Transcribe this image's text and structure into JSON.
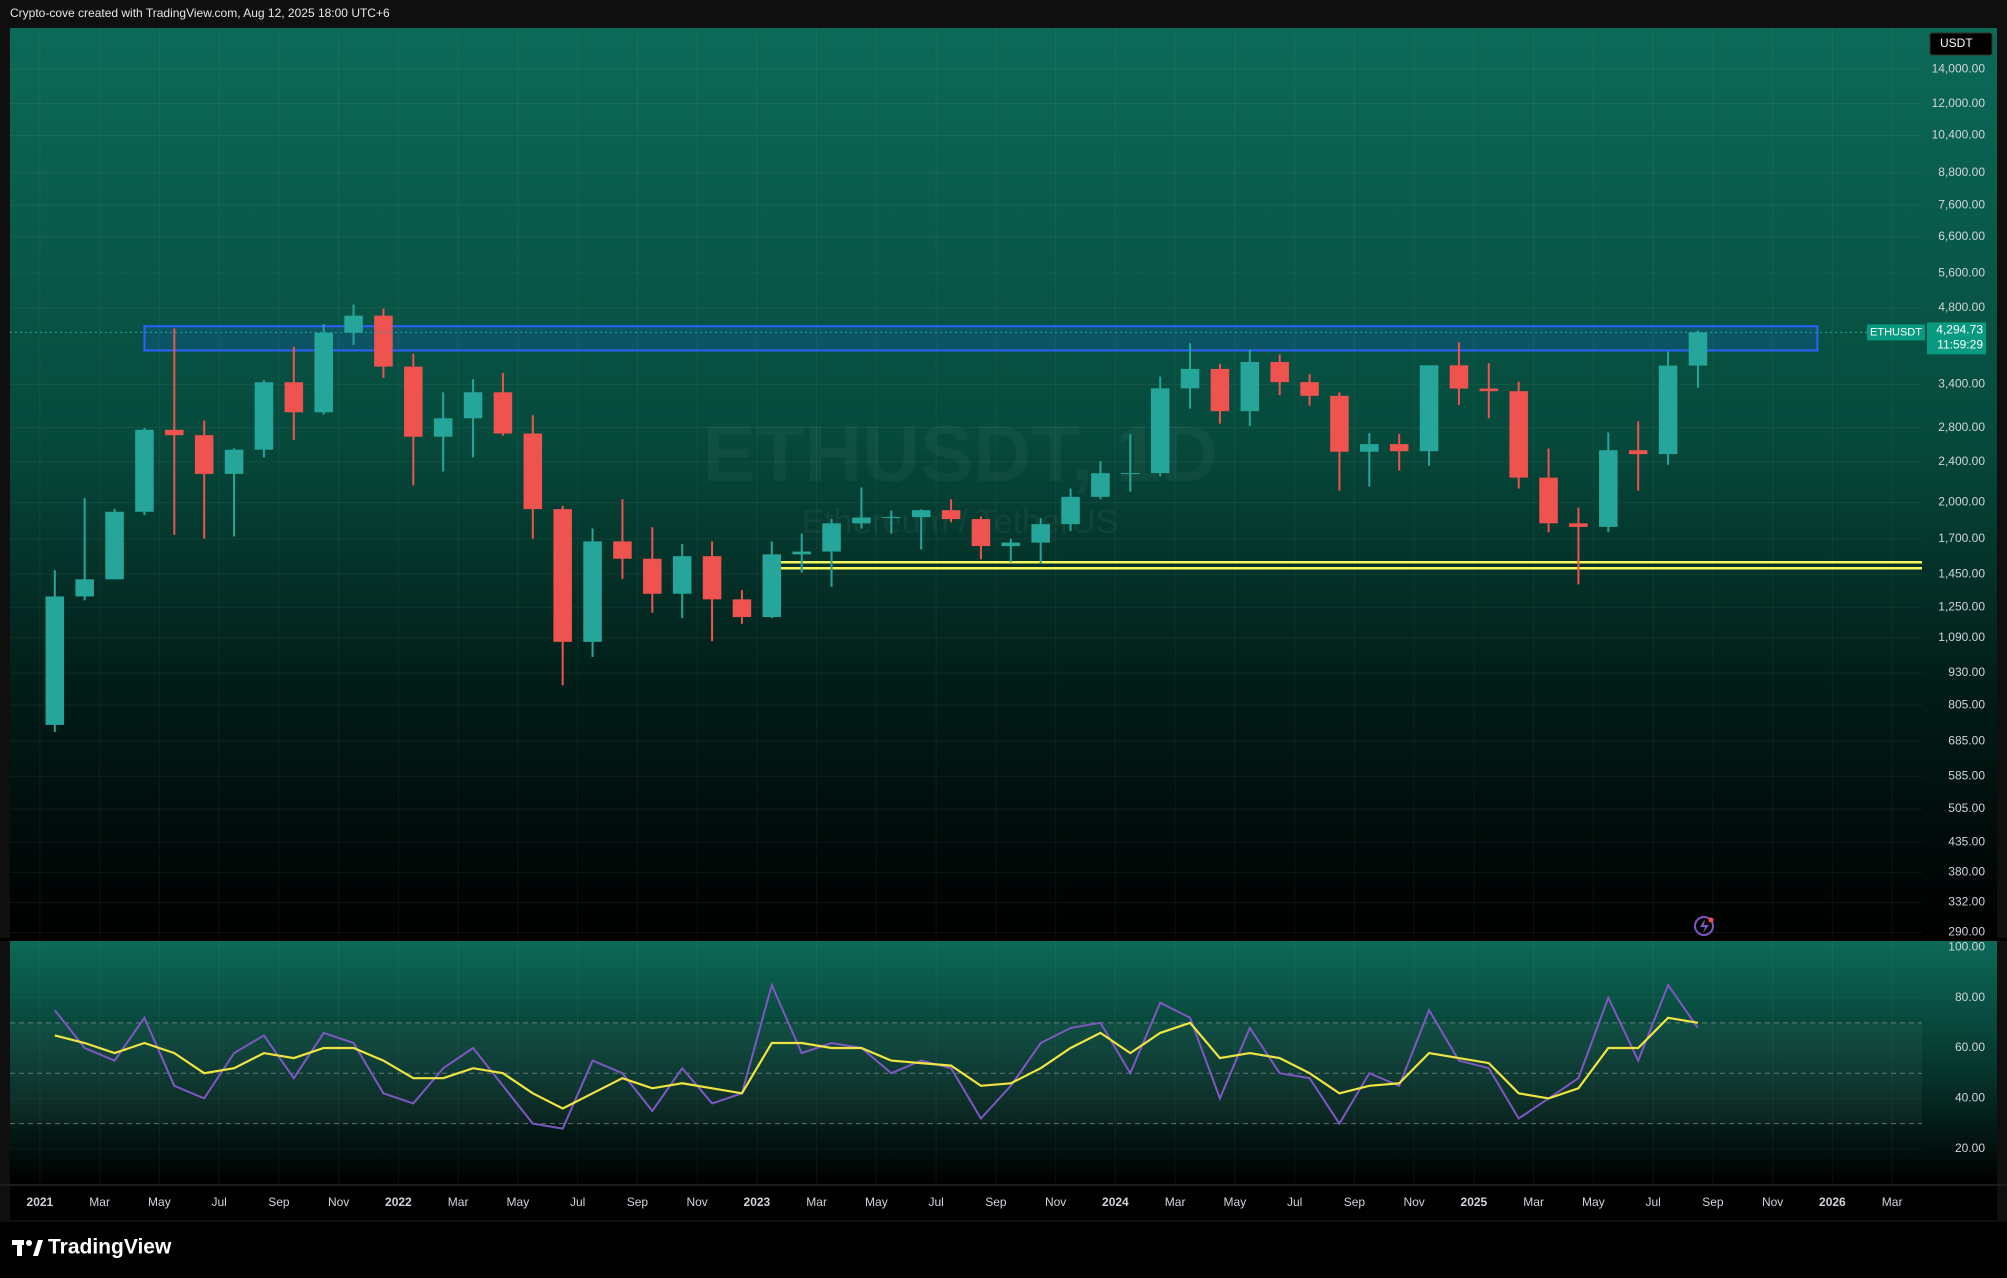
{
  "header": {
    "title": "Crypto-cove created with TradingView.com, Aug 12, 2025 18:00 UTC+6"
  },
  "footer": {
    "brand": "TradingView"
  },
  "chart_data": [
    {
      "type": "candlestick",
      "watermark": "ETHUSDT, 1D",
      "watermark_sub": "Ethereum / TetherUS",
      "currency": "USDT",
      "symbol": "ETHUSDT",
      "last_price": {
        "value": 4294.73,
        "label": "4,294.73"
      },
      "countdown": "11:59:29",
      "up_color": "#26a69a",
      "down_color": "#ef5350",
      "log_scale": true,
      "grid": true,
      "xlim": [
        "2020-12",
        "2026-04"
      ],
      "ylim": [
        283,
        16850
      ],
      "yticks": [
        {
          "value": 14000,
          "label": "14,000.00"
        },
        {
          "value": 12000,
          "label": "12,000.00"
        },
        {
          "value": 10400,
          "label": "10,400.00"
        },
        {
          "value": 8800,
          "label": "8,800.00"
        },
        {
          "value": 7600,
          "label": "7,600.00"
        },
        {
          "value": 6600,
          "label": "6,600.00"
        },
        {
          "value": 5600,
          "label": "5,600.00"
        },
        {
          "value": 4800,
          "label": "4,800.00"
        },
        {
          "value": 3400,
          "label": "3,400.00"
        },
        {
          "value": 2800,
          "label": "2,800.00"
        },
        {
          "value": 2400,
          "label": "2,400.00"
        },
        {
          "value": 2000,
          "label": "2,000.00"
        },
        {
          "value": 1700,
          "label": "1,700.00"
        },
        {
          "value": 1450,
          "label": "1,450.00"
        },
        {
          "value": 1250,
          "label": "1,250.00"
        },
        {
          "value": 1090,
          "label": "1,090.00"
        },
        {
          "value": 930,
          "label": "930.00"
        },
        {
          "value": 805,
          "label": "805.00"
        },
        {
          "value": 685,
          "label": "685.00"
        },
        {
          "value": 585,
          "label": "585.00"
        },
        {
          "value": 505,
          "label": "505.00"
        },
        {
          "value": 435,
          "label": "435.00"
        },
        {
          "value": 380,
          "label": "380.00"
        },
        {
          "value": 332,
          "label": "332.00"
        },
        {
          "value": 290,
          "label": "290.00"
        }
      ],
      "x": [
        "2021-01",
        "2021-02",
        "2021-03",
        "2021-04",
        "2021-05",
        "2021-06",
        "2021-07",
        "2021-08",
        "2021-09",
        "2021-10",
        "2021-11",
        "2021-12",
        "2022-01",
        "2022-02",
        "2022-03",
        "2022-04",
        "2022-05",
        "2022-06",
        "2022-07",
        "2022-08",
        "2022-09",
        "2022-10",
        "2022-11",
        "2022-12",
        "2023-01",
        "2023-02",
        "2023-03",
        "2023-04",
        "2023-05",
        "2023-06",
        "2023-07",
        "2023-08",
        "2023-09",
        "2023-10",
        "2023-11",
        "2023-12",
        "2024-01",
        "2024-02",
        "2024-03",
        "2024-04",
        "2024-05",
        "2024-06",
        "2024-07",
        "2024-08",
        "2024-09",
        "2024-10",
        "2024-11",
        "2024-12",
        "2025-01",
        "2025-02",
        "2025-03",
        "2025-04",
        "2025-05",
        "2025-06",
        "2025-07",
        "2025-08"
      ],
      "open": [
        737,
        1312,
        1417,
        1919,
        2773,
        2707,
        2275,
        2536,
        3433,
        3000,
        4288,
        4630,
        3683,
        2688,
        2920,
        3282,
        2727,
        1942,
        1070,
        1680,
        1554,
        1328,
        1572,
        1295,
        1196,
        1585,
        1605,
        1822,
        1870,
        1874,
        1933,
        1857,
        1645,
        1671,
        1815,
        2052,
        2282,
        2283,
        3340,
        3645,
        3015,
        3760,
        3435,
        3230,
        2513,
        2600,
        2519,
        3705,
        3337,
        3298,
        2237,
        1822,
        1793,
        2530,
        2486,
        3700
      ],
      "high": [
        1476,
        2040,
        1944,
        2797,
        4372,
        2891,
        2551,
        3466,
        4027,
        4460,
        4868,
        4778,
        3900,
        3280,
        3480,
        3580,
        2960,
        1970,
        1780,
        2030,
        1790,
        1660,
        1680,
        1350,
        1680,
        1740,
        1860,
        2140,
        1930,
        1940,
        2030,
        1880,
        1700,
        1865,
        2130,
        2410,
        2720,
        3520,
        4090,
        3730,
        3975,
        3890,
        3560,
        3280,
        2730,
        2720,
        3690,
        4107,
        3740,
        3440,
        2550,
        1955,
        2740,
        2880,
        3940,
        4332
      ],
      "low": [
        714,
        1290,
        1417,
        1890,
        1730,
        1700,
        1718,
        2450,
        2650,
        2970,
        4060,
        3500,
        2160,
        2300,
        2450,
        2700,
        1700,
        880,
        1000,
        1420,
        1220,
        1190,
        1073,
        1160,
        1190,
        1460,
        1370,
        1780,
        1740,
        1620,
        1830,
        1550,
        1530,
        1520,
        1760,
        2030,
        2100,
        2250,
        3050,
        2850,
        2820,
        3240,
        3090,
        2110,
        2150,
        2310,
        2360,
        3100,
        2920,
        2130,
        1750,
        1385,
        1750,
        2110,
        2370,
        3350
      ],
      "close": [
        1312,
        1417,
        1919,
        2773,
        2707,
        2275,
        2536,
        3433,
        3000,
        4288,
        4630,
        3683,
        2688,
        2920,
        3282,
        2727,
        1942,
        1070,
        1680,
        1554,
        1328,
        1572,
        1295,
        1196,
        1585,
        1605,
        1822,
        1870,
        1874,
        1933,
        1857,
        1645,
        1671,
        1815,
        2052,
        2282,
        2283,
        3340,
        3645,
        3015,
        3760,
        3435,
        3230,
        2513,
        2600,
        2519,
        3705,
        3337,
        3298,
        2237,
        1822,
        1793,
        2530,
        2486,
        3700,
        4294.73
      ],
      "zones": [
        {
          "from": "2021-04",
          "to": "2025-12",
          "low": 3960,
          "high": 4415,
          "color": "#2962ff"
        }
      ],
      "lines": [
        {
          "from": "2023-01",
          "value": 1530,
          "color": "#f7f75a"
        },
        {
          "from": "2023-01",
          "value": 1489,
          "color": "#f7f75a"
        }
      ]
    },
    {
      "type": "line",
      "grid": true,
      "xlim": [
        "2020-12",
        "2026-04"
      ],
      "ylim": [
        6,
        102.5
      ],
      "yticks": [
        {
          "value": 100,
          "label": "100.00"
        },
        {
          "value": 80,
          "label": "80.00"
        },
        {
          "value": 60,
          "label": "60.00"
        },
        {
          "value": 40,
          "label": "40.00"
        },
        {
          "value": 20,
          "label": "20.00"
        }
      ],
      "levels": [
        70,
        50,
        30
      ],
      "xticks": [
        {
          "value": "2021-01",
          "label": "2021"
        },
        {
          "value": "2021-03",
          "label": "Mar"
        },
        {
          "value": "2021-05",
          "label": "May"
        },
        {
          "value": "2021-07",
          "label": "Jul"
        },
        {
          "value": "2021-09",
          "label": "Sep"
        },
        {
          "value": "2021-11",
          "label": "Nov"
        },
        {
          "value": "2022-01",
          "label": "2022"
        },
        {
          "value": "2022-03",
          "label": "Mar"
        },
        {
          "value": "2022-05",
          "label": "May"
        },
        {
          "value": "2022-07",
          "label": "Jul"
        },
        {
          "value": "2022-09",
          "label": "Sep"
        },
        {
          "value": "2022-11",
          "label": "Nov"
        },
        {
          "value": "2023-01",
          "label": "2023"
        },
        {
          "value": "2023-03",
          "label": "Mar"
        },
        {
          "value": "2023-05",
          "label": "May"
        },
        {
          "value": "2023-07",
          "label": "Jul"
        },
        {
          "value": "2023-09",
          "label": "Sep"
        },
        {
          "value": "2023-11",
          "label": "Nov"
        },
        {
          "value": "2024-01",
          "label": "2024"
        },
        {
          "value": "2024-03",
          "label": "Mar"
        },
        {
          "value": "2024-05",
          "label": "May"
        },
        {
          "value": "2024-07",
          "label": "Jul"
        },
        {
          "value": "2024-09",
          "label": "Sep"
        },
        {
          "value": "2024-11",
          "label": "Nov"
        },
        {
          "value": "2025-01",
          "label": "2025"
        },
        {
          "value": "2025-03",
          "label": "Mar"
        },
        {
          "value": "2025-05",
          "label": "May"
        },
        {
          "value": "2025-07",
          "label": "Jul"
        },
        {
          "value": "2025-09",
          "label": "Sep"
        },
        {
          "value": "2025-11",
          "label": "Nov"
        },
        {
          "value": "2026-01",
          "label": "2026"
        },
        {
          "value": "2026-03",
          "label": "Mar"
        }
      ],
      "x": [
        "2021-01",
        "2021-02",
        "2021-03",
        "2021-04",
        "2021-05",
        "2021-06",
        "2021-07",
        "2021-08",
        "2021-09",
        "2021-10",
        "2021-11",
        "2021-12",
        "2022-01",
        "2022-02",
        "2022-03",
        "2022-04",
        "2022-05",
        "2022-06",
        "2022-07",
        "2022-08",
        "2022-09",
        "2022-10",
        "2022-11",
        "2022-12",
        "2023-01",
        "2023-02",
        "2023-03",
        "2023-04",
        "2023-05",
        "2023-06",
        "2023-07",
        "2023-08",
        "2023-09",
        "2023-10",
        "2023-11",
        "2023-12",
        "2024-01",
        "2024-02",
        "2024-03",
        "2024-04",
        "2024-05",
        "2024-06",
        "2024-07",
        "2024-08",
        "2024-09",
        "2024-10",
        "2024-11",
        "2024-12",
        "2025-01",
        "2025-02",
        "2025-03",
        "2025-04",
        "2025-05",
        "2025-06",
        "2025-07",
        "2025-08"
      ],
      "series": [
        {
          "color": "#7e57c2",
          "values": [
            75,
            60,
            55,
            72,
            45,
            40,
            58,
            65,
            48,
            66,
            62,
            42,
            38,
            52,
            60,
            45,
            30,
            28,
            55,
            50,
            35,
            52,
            38,
            42,
            85,
            58,
            62,
            60,
            50,
            55,
            52,
            32,
            45,
            62,
            68,
            70,
            50,
            78,
            72,
            40,
            68,
            50,
            48,
            30,
            50,
            45,
            75,
            55,
            52,
            32,
            40,
            48,
            80,
            55,
            85,
            68
          ]
        },
        {
          "color": "#f0e442",
          "values": [
            65,
            62,
            58,
            62,
            58,
            50,
            52,
            58,
            56,
            60,
            60,
            55,
            48,
            48,
            52,
            50,
            42,
            36,
            42,
            48,
            44,
            46,
            44,
            42,
            62,
            62,
            60,
            60,
            55,
            54,
            53,
            45,
            46,
            52,
            60,
            66,
            58,
            66,
            70,
            56,
            58,
            56,
            50,
            42,
            45,
            46,
            58,
            56,
            54,
            42,
            40,
            44,
            60,
            60,
            72,
            70
          ]
        }
      ]
    }
  ]
}
